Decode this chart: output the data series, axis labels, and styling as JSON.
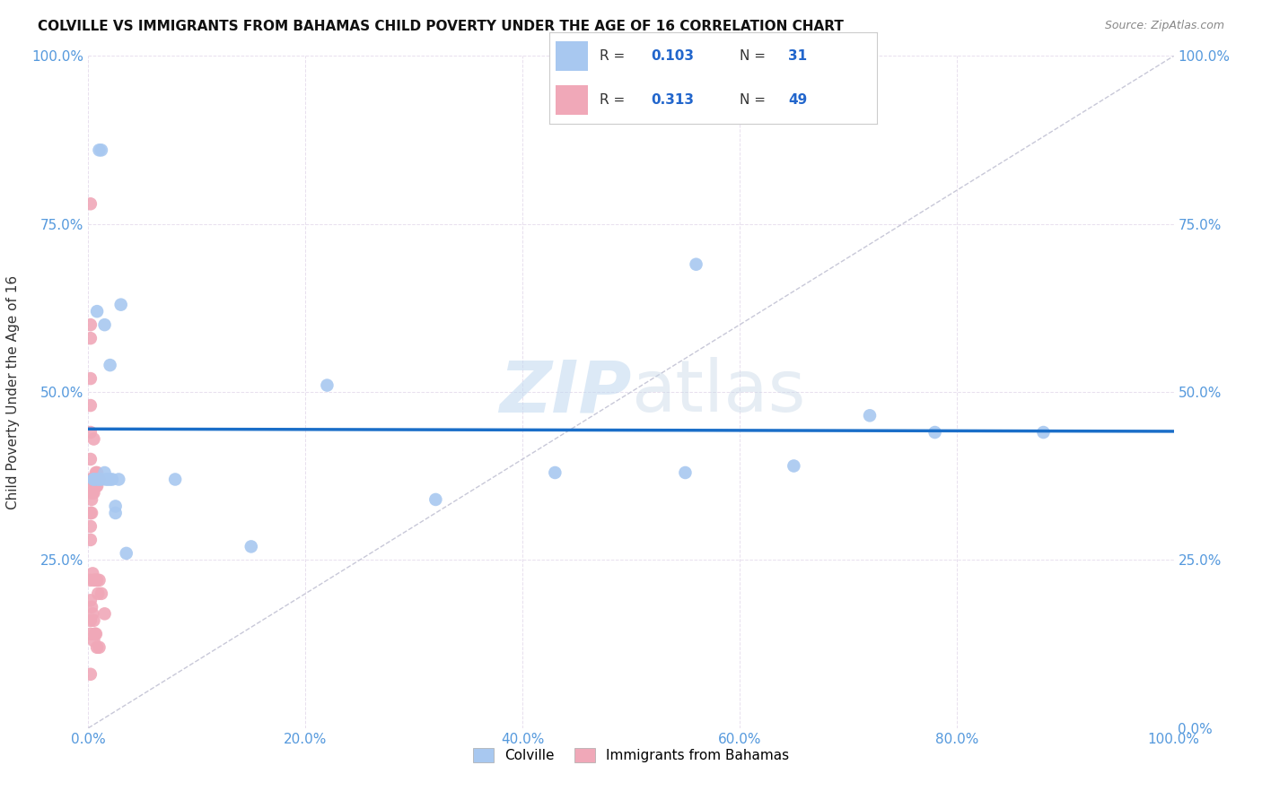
{
  "title": "COLVILLE VS IMMIGRANTS FROM BAHAMAS CHILD POVERTY UNDER THE AGE OF 16 CORRELATION CHART",
  "source": "Source: ZipAtlas.com",
  "ylabel": "Child Poverty Under the Age of 16",
  "xlim": [
    0,
    1.0
  ],
  "ylim": [
    0,
    1.0
  ],
  "xtick_positions": [
    0,
    0.2,
    0.4,
    0.6,
    0.8,
    1.0
  ],
  "xtick_labels": [
    "0.0%",
    "20.0%",
    "40.0%",
    "60.0%",
    "80.0%",
    "100.0%"
  ],
  "ytick_positions": [
    0,
    0.25,
    0.5,
    0.75,
    1.0
  ],
  "ytick_labels_left": [
    "",
    "25.0%",
    "50.0%",
    "75.0%",
    "100.0%"
  ],
  "ytick_labels_right": [
    "0.0%",
    "25.0%",
    "50.0%",
    "75.0%",
    "100.0%"
  ],
  "colville_R": 0.103,
  "colville_N": 31,
  "immigrants_R": 0.313,
  "immigrants_N": 49,
  "colville_color": "#a8c8f0",
  "immigrants_color": "#f0a8b8",
  "trend_color_colville": "#1a6ec8",
  "diagonal_color": "#c8c8d8",
  "colville_x": [
    0.005,
    0.008,
    0.01,
    0.012,
    0.015,
    0.016,
    0.018,
    0.02,
    0.022,
    0.025,
    0.028,
    0.03,
    0.005,
    0.008,
    0.01,
    0.012,
    0.015,
    0.02,
    0.025,
    0.035,
    0.08,
    0.15,
    0.22,
    0.32,
    0.43,
    0.55,
    0.56,
    0.65,
    0.72,
    0.78,
    0.88
  ],
  "colville_y": [
    0.37,
    0.62,
    0.86,
    0.86,
    0.6,
    0.37,
    0.37,
    0.37,
    0.37,
    0.32,
    0.37,
    0.63,
    0.37,
    0.37,
    0.37,
    0.37,
    0.38,
    0.54,
    0.33,
    0.26,
    0.37,
    0.27,
    0.51,
    0.34,
    0.38,
    0.38,
    0.69,
    0.39,
    0.465,
    0.44,
    0.44
  ],
  "immigrants_x": [
    0.002,
    0.002,
    0.002,
    0.002,
    0.002,
    0.002,
    0.002,
    0.002,
    0.002,
    0.002,
    0.002,
    0.002,
    0.002,
    0.002,
    0.002,
    0.002,
    0.002,
    0.002,
    0.003,
    0.003,
    0.003,
    0.003,
    0.004,
    0.004,
    0.004,
    0.004,
    0.005,
    0.005,
    0.005,
    0.005,
    0.005,
    0.005,
    0.006,
    0.006,
    0.007,
    0.007,
    0.007,
    0.007,
    0.008,
    0.008,
    0.008,
    0.008,
    0.009,
    0.009,
    0.01,
    0.01,
    0.01,
    0.012,
    0.015
  ],
  "immigrants_y": [
    0.78,
    0.6,
    0.58,
    0.52,
    0.48,
    0.44,
    0.4,
    0.37,
    0.36,
    0.35,
    0.32,
    0.3,
    0.28,
    0.22,
    0.19,
    0.16,
    0.14,
    0.08,
    0.37,
    0.34,
    0.32,
    0.18,
    0.37,
    0.35,
    0.23,
    0.17,
    0.43,
    0.37,
    0.35,
    0.22,
    0.16,
    0.13,
    0.37,
    0.14,
    0.38,
    0.36,
    0.22,
    0.14,
    0.38,
    0.36,
    0.22,
    0.12,
    0.37,
    0.2,
    0.37,
    0.22,
    0.12,
    0.2,
    0.17
  ],
  "watermark_zip": "ZIP",
  "watermark_atlas": "atlas",
  "background_color": "#ffffff",
  "grid_color": "#e8e0ee",
  "tick_color": "#5599dd",
  "title_color": "#111111",
  "source_color": "#888888"
}
